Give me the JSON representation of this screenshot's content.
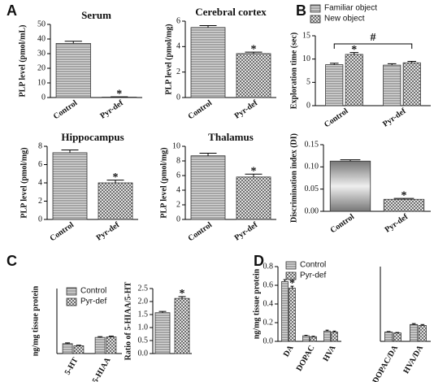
{
  "panel_labels": [
    "A",
    "B",
    "C",
    "D"
  ],
  "chart_data": [
    {
      "type": "bar",
      "title": "Serum",
      "ylabel": "PLP level (pmol/mL)",
      "categories": [
        "Control",
        "Pyr-def"
      ],
      "values": [
        37,
        0.3
      ],
      "errors": [
        1.5,
        0.2
      ],
      "fills": [
        "stripes",
        "checks"
      ],
      "ylim": [
        0,
        50
      ],
      "yticks": [
        0,
        10,
        20,
        30,
        40,
        50
      ],
      "annotations": [
        "*"
      ]
    },
    {
      "type": "bar",
      "title": "Cerebral cortex",
      "ylabel": "PLP level (pmol/mg)",
      "categories": [
        "Control",
        "Pyr-def"
      ],
      "values": [
        5.5,
        3.45
      ],
      "errors": [
        0.15,
        0.12
      ],
      "fills": [
        "stripes",
        "checks"
      ],
      "ylim": [
        0,
        6
      ],
      "yticks": [
        0,
        2,
        4,
        6
      ],
      "annotations": [
        "*"
      ]
    },
    {
      "type": "bar",
      "title": "Hippocampus",
      "ylabel": "PLP level (pmol/mg)",
      "categories": [
        "Control",
        "Pyr-def"
      ],
      "values": [
        7.3,
        4.0
      ],
      "errors": [
        0.3,
        0.3
      ],
      "fills": [
        "stripes",
        "checks"
      ],
      "ylim": [
        0,
        8
      ],
      "yticks": [
        0,
        2,
        4,
        6,
        8
      ],
      "annotations": [
        "*"
      ]
    },
    {
      "type": "bar",
      "title": "Thalamus",
      "ylabel": "PLP level (pmol/mg)",
      "categories": [
        "Control",
        "Pyr-def"
      ],
      "values": [
        8.7,
        5.8
      ],
      "errors": [
        0.35,
        0.4
      ],
      "fills": [
        "stripes",
        "checks"
      ],
      "ylim": [
        0,
        10
      ],
      "yticks": [
        0,
        2,
        4,
        6,
        8,
        10
      ],
      "annotations": [
        "*"
      ]
    },
    {
      "type": "bar",
      "ylabel": "Exploration time (sec)",
      "categories": [
        "Control",
        "Pyr-def"
      ],
      "series": [
        {
          "name": "Familiar object",
          "fill": "stripes",
          "values": [
            8.8,
            8.7
          ],
          "errors": [
            0.3,
            0.3
          ]
        },
        {
          "name": "New object",
          "fill": "checks",
          "values": [
            11.0,
            9.2
          ],
          "errors": [
            0.4,
            0.3
          ]
        }
      ],
      "ylim": [
        0,
        15
      ],
      "yticks": [
        0,
        5,
        10,
        15
      ],
      "legend": "top",
      "annotations": [
        "*",
        "#"
      ]
    },
    {
      "type": "bar",
      "ylabel": "Discrimination index (DI)",
      "categories": [
        "Control",
        "Pyr-def"
      ],
      "values": [
        0.113,
        0.027
      ],
      "errors": [
        0.003,
        0.002
      ],
      "fills": [
        "gradient",
        "checks"
      ],
      "ylim": [
        0,
        0.15
      ],
      "yticks": [
        {
          "value": 0,
          "label": "0.00"
        },
        {
          "value": 0.05,
          "label": "0.05"
        },
        {
          "value": 0.1,
          "label": "0.10"
        },
        {
          "value": 0.15,
          "label": "0.15"
        }
      ],
      "annotations": [
        "*"
      ]
    },
    {
      "type": "bar",
      "ylabel": "ng/mg tissue protein",
      "categories": [
        "5-HT",
        "5-HIAA"
      ],
      "series": [
        {
          "name": "Control",
          "fill": "stripes",
          "values": [
            0.38,
            0.62
          ],
          "errors": [
            0.03,
            0.03
          ]
        },
        {
          "name": "Pyr-def",
          "fill": "checks",
          "values": [
            0.3,
            0.64
          ],
          "errors": [
            0.02,
            0.03
          ]
        }
      ],
      "ylim": [
        0,
        2.5
      ],
      "legend": "top left"
    },
    {
      "type": "bar",
      "ylabel": "Ratio of 5-HIAA/5-HT",
      "categories": [
        null,
        null
      ],
      "values": [
        1.57,
        2.12
      ],
      "errors": [
        0.05,
        0.07
      ],
      "fills": [
        "stripes",
        "checks"
      ],
      "ylim": [
        0,
        2.5
      ],
      "yticks": [
        {
          "value": 0,
          "label": "0.0"
        },
        0.5,
        {
          "value": 1,
          "label": "1.0"
        },
        1.5,
        {
          "value": 2,
          "label": "2.0"
        },
        2.5
      ],
      "annotations": [
        "*"
      ]
    },
    {
      "type": "bar",
      "ylabel": "ng/mg tissue protein",
      "categories": [
        "DA",
        "DOPAC",
        "HVA"
      ],
      "series": [
        {
          "name": "Control",
          "fill": "stripes",
          "values": [
            0.64,
            0.06,
            0.11
          ],
          "errors": [
            0.02,
            0.005,
            0.01
          ]
        },
        {
          "name": "Pyr-def",
          "fill": "checks",
          "values": [
            0.57,
            0.05,
            0.1
          ],
          "errors": [
            0.02,
            0.005,
            0.01
          ]
        }
      ],
      "ylim": [
        0,
        0.8
      ],
      "yticks": [
        {
          "value": 0,
          "label": "0.0"
        },
        0.2,
        0.4,
        0.6,
        0.8
      ],
      "legend": "top right",
      "annotations": [
        "*"
      ]
    },
    {
      "type": "bar",
      "categories": [
        "DOPAC/DA",
        "HVA/DA"
      ],
      "series": [
        {
          "fill": "stripes",
          "values": [
            0.1,
            0.18
          ],
          "errors": [
            0.005,
            0.01
          ]
        },
        {
          "fill": "checks",
          "values": [
            0.09,
            0.17
          ],
          "errors": [
            0.005,
            0.01
          ]
        }
      ],
      "ylim": [
        0,
        0.8
      ]
    }
  ]
}
